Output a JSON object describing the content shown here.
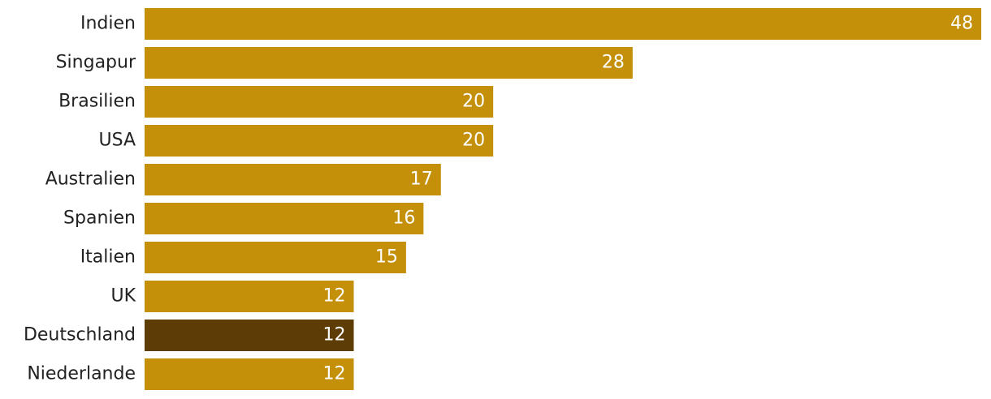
{
  "chart_data": {
    "type": "bar",
    "orientation": "horizontal",
    "categories": [
      "Indien",
      "Singapur",
      "Brasilien",
      "USA",
      "Australien",
      "Spanien",
      "Italien",
      "UK",
      "Deutschland",
      "Niederlande"
    ],
    "values": [
      48,
      28,
      20,
      20,
      17,
      16,
      15,
      12,
      12,
      12
    ],
    "colors": [
      "#c48f09",
      "#c48f09",
      "#c48f09",
      "#c48f09",
      "#c48f09",
      "#c48f09",
      "#c48f09",
      "#c48f09",
      "#5e3c05",
      "#c48f09"
    ],
    "data_labels": true
  }
}
